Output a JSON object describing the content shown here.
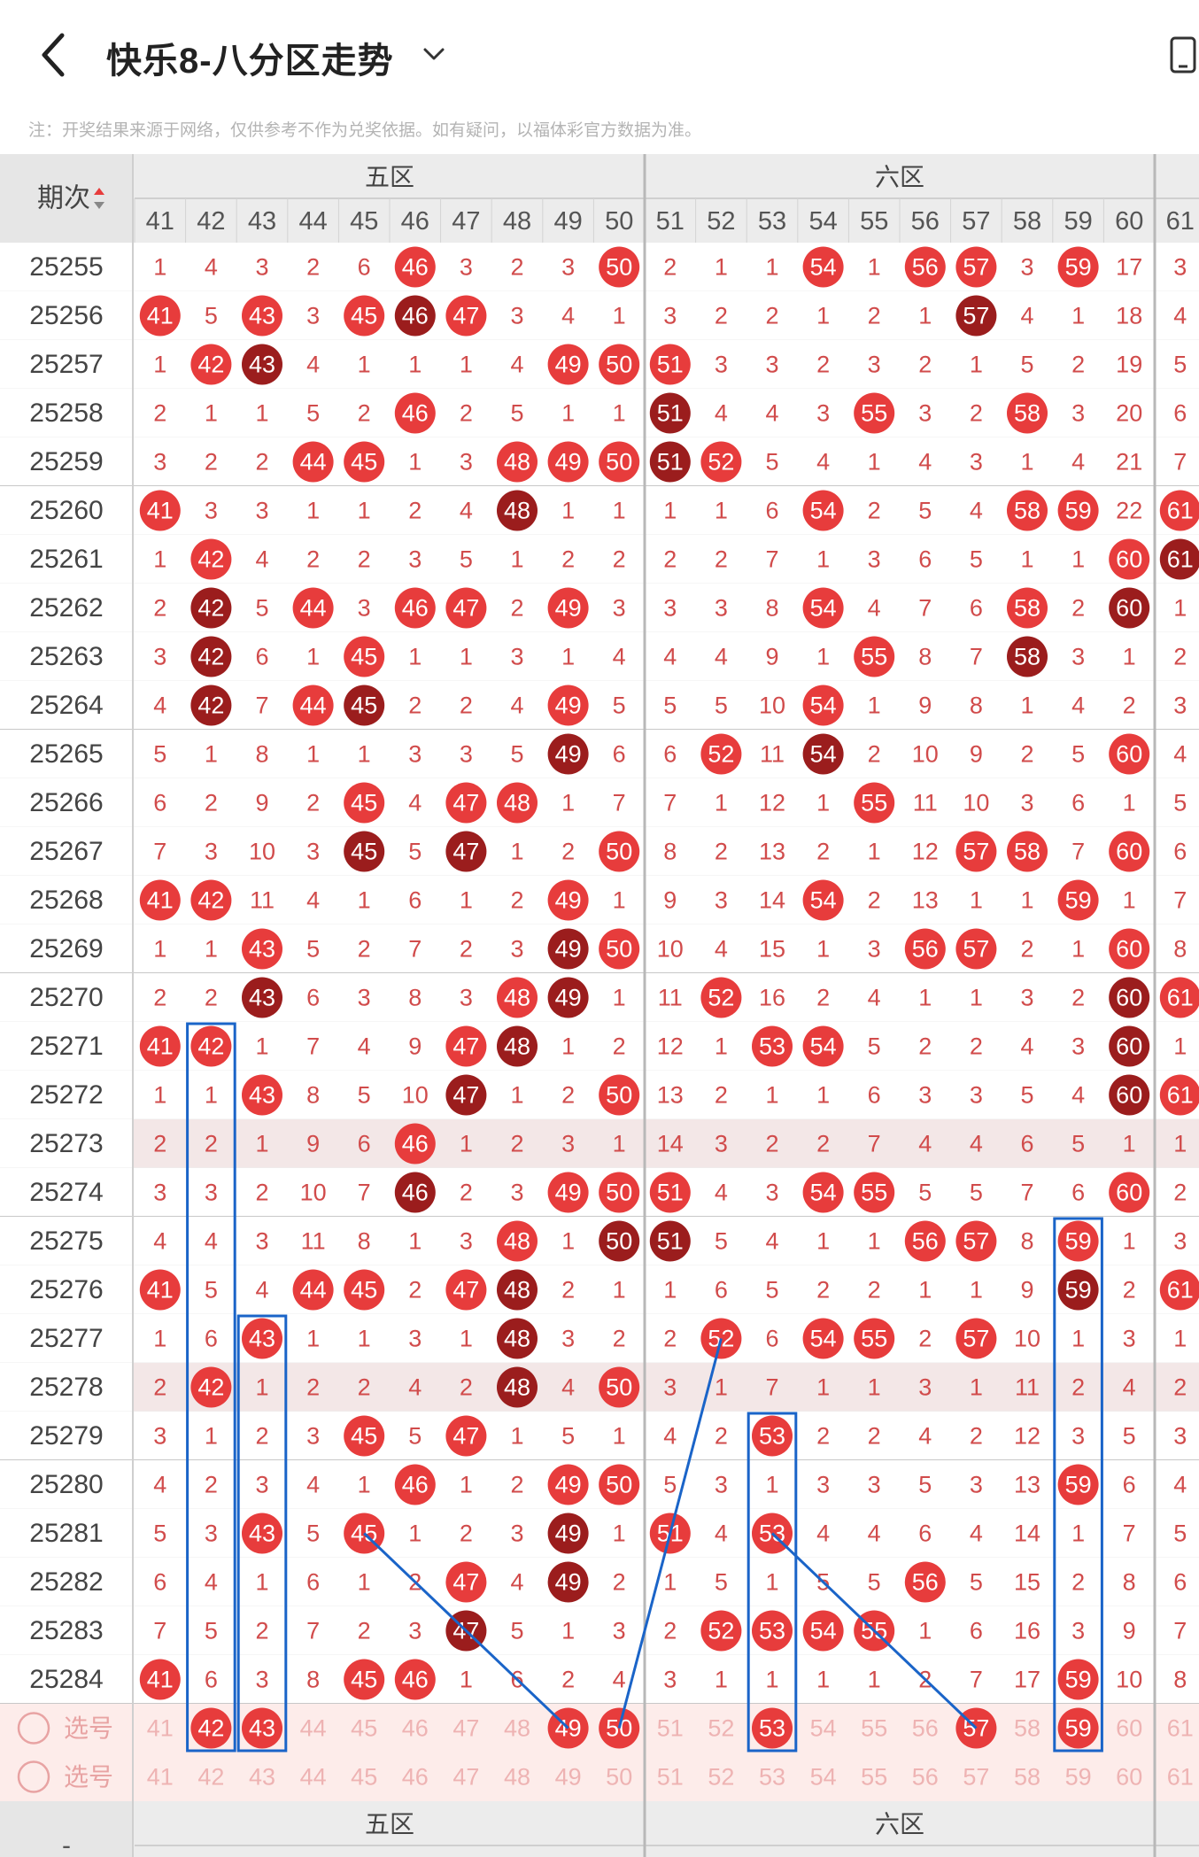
{
  "header": {
    "title": "快乐8-八分区走势",
    "notice": "注：开奖结果来源于网络，仅供参考不作为兑奖依据。如有疑问，以福体彩官方数据为准。"
  },
  "icons": {
    "back": "chevron-left-icon",
    "dropdown": "chevron-down-icon",
    "device": "phone-icon",
    "sort": "sort-icon",
    "select": "radio-circle-icon"
  },
  "colors": {
    "hit": "#e73c3c",
    "repeat": "#9b1d1d",
    "miss_text": "#d14b4b",
    "line": "#1a64c8",
    "header_bg": "#ececec",
    "select_row_bg": "#fdecea"
  },
  "table": {
    "issue_header": "期次",
    "zones": [
      "五区",
      "六区"
    ],
    "columns": [
      "41",
      "42",
      "43",
      "44",
      "45",
      "46",
      "47",
      "48",
      "49",
      "50",
      "51",
      "52",
      "53",
      "54",
      "55",
      "56",
      "57",
      "58",
      "59",
      "60",
      "61"
    ],
    "select_label": "选号",
    "select_rows": [
      {
        "label": "选号",
        "picked": [
          "42",
          "43",
          "49",
          "50",
          "53",
          "57",
          "59"
        ]
      },
      {
        "label": "选号",
        "picked": []
      }
    ],
    "footer_left": "-",
    "rows": [
      {
        "issue": "25255",
        "cells": [
          "1",
          "4",
          "3",
          "2",
          "6",
          "46",
          "3",
          "2",
          "3",
          "50",
          "2",
          "1",
          "1",
          "54",
          "1",
          "56",
          "57",
          "3",
          "59",
          "17",
          "3"
        ]
      },
      {
        "issue": "25256",
        "cells": [
          "41",
          "5",
          "43",
          "3",
          "45",
          "46",
          "47",
          "3",
          "4",
          "1",
          "3",
          "2",
          "2",
          "1",
          "2",
          "1",
          "57",
          "4",
          "1",
          "18",
          "4"
        ]
      },
      {
        "issue": "25257",
        "cells": [
          "1",
          "42",
          "43",
          "4",
          "1",
          "1",
          "1",
          "4",
          "49",
          "50",
          "51",
          "3",
          "3",
          "2",
          "3",
          "2",
          "1",
          "5",
          "2",
          "19",
          "5"
        ]
      },
      {
        "issue": "25258",
        "cells": [
          "2",
          "1",
          "1",
          "5",
          "2",
          "46",
          "2",
          "5",
          "1",
          "1",
          "51",
          "4",
          "4",
          "3",
          "55",
          "3",
          "2",
          "58",
          "3",
          "20",
          "6"
        ]
      },
      {
        "issue": "25259",
        "cells": [
          "3",
          "2",
          "2",
          "44",
          "45",
          "1",
          "3",
          "48",
          "49",
          "50",
          "51",
          "52",
          "5",
          "4",
          "1",
          "4",
          "3",
          "1",
          "4",
          "21",
          "7"
        ]
      },
      {
        "issue": "25260",
        "cells": [
          "41",
          "3",
          "3",
          "1",
          "1",
          "2",
          "4",
          "48",
          "1",
          "1",
          "1",
          "1",
          "6",
          "54",
          "2",
          "5",
          "4",
          "58",
          "59",
          "22",
          "61"
        ]
      },
      {
        "issue": "25261",
        "cells": [
          "1",
          "42",
          "4",
          "2",
          "2",
          "3",
          "5",
          "1",
          "2",
          "2",
          "2",
          "2",
          "7",
          "1",
          "3",
          "6",
          "5",
          "1",
          "1",
          "60",
          "61"
        ]
      },
      {
        "issue": "25262",
        "cells": [
          "2",
          "42",
          "5",
          "44",
          "3",
          "46",
          "47",
          "2",
          "49",
          "3",
          "3",
          "3",
          "8",
          "54",
          "4",
          "7",
          "6",
          "58",
          "2",
          "60",
          "1"
        ]
      },
      {
        "issue": "25263",
        "cells": [
          "3",
          "42",
          "6",
          "1",
          "45",
          "1",
          "1",
          "3",
          "1",
          "4",
          "4",
          "4",
          "9",
          "1",
          "55",
          "8",
          "7",
          "58",
          "3",
          "1",
          "2"
        ]
      },
      {
        "issue": "25264",
        "cells": [
          "4",
          "42",
          "7",
          "44",
          "45",
          "2",
          "2",
          "4",
          "49",
          "5",
          "5",
          "5",
          "10",
          "54",
          "1",
          "9",
          "8",
          "1",
          "4",
          "2",
          "3"
        ]
      },
      {
        "issue": "25265",
        "cells": [
          "5",
          "1",
          "8",
          "1",
          "1",
          "3",
          "3",
          "5",
          "49",
          "6",
          "6",
          "52",
          "11",
          "54",
          "2",
          "10",
          "9",
          "2",
          "5",
          "60",
          "4"
        ]
      },
      {
        "issue": "25266",
        "cells": [
          "6",
          "2",
          "9",
          "2",
          "45",
          "4",
          "47",
          "48",
          "1",
          "7",
          "7",
          "1",
          "12",
          "1",
          "55",
          "11",
          "10",
          "3",
          "6",
          "1",
          "5"
        ]
      },
      {
        "issue": "25267",
        "cells": [
          "7",
          "3",
          "10",
          "3",
          "45",
          "5",
          "47",
          "1",
          "2",
          "50",
          "8",
          "2",
          "13",
          "2",
          "1",
          "12",
          "57",
          "58",
          "7",
          "60",
          "6"
        ]
      },
      {
        "issue": "25268",
        "cells": [
          "41",
          "42",
          "11",
          "4",
          "1",
          "6",
          "1",
          "2",
          "49",
          "1",
          "9",
          "3",
          "14",
          "54",
          "2",
          "13",
          "1",
          "1",
          "59",
          "1",
          "7"
        ]
      },
      {
        "issue": "25269",
        "cells": [
          "1",
          "1",
          "43",
          "5",
          "2",
          "7",
          "2",
          "3",
          "49",
          "50",
          "10",
          "4",
          "15",
          "1",
          "3",
          "56",
          "57",
          "2",
          "1",
          "60",
          "8"
        ]
      },
      {
        "issue": "25270",
        "cells": [
          "2",
          "2",
          "43",
          "6",
          "3",
          "8",
          "3",
          "48",
          "49",
          "1",
          "11",
          "52",
          "16",
          "2",
          "4",
          "1",
          "1",
          "3",
          "2",
          "60",
          "61"
        ]
      },
      {
        "issue": "25271",
        "cells": [
          "41",
          "42",
          "1",
          "7",
          "4",
          "9",
          "47",
          "48",
          "1",
          "2",
          "12",
          "1",
          "53",
          "54",
          "5",
          "2",
          "2",
          "4",
          "3",
          "60",
          "1"
        ]
      },
      {
        "issue": "25272",
        "cells": [
          "1",
          "1",
          "43",
          "8",
          "5",
          "10",
          "47",
          "1",
          "2",
          "50",
          "13",
          "2",
          "1",
          "1",
          "6",
          "3",
          "3",
          "5",
          "4",
          "60",
          "61"
        ]
      },
      {
        "issue": "25273",
        "cells": [
          "2",
          "2",
          "1",
          "9",
          "6",
          "46",
          "1",
          "2",
          "3",
          "1",
          "14",
          "3",
          "2",
          "2",
          "7",
          "4",
          "4",
          "6",
          "5",
          "1",
          "1"
        ]
      },
      {
        "issue": "25274",
        "cells": [
          "3",
          "3",
          "2",
          "10",
          "7",
          "46",
          "2",
          "3",
          "49",
          "50",
          "51",
          "4",
          "3",
          "54",
          "55",
          "5",
          "5",
          "7",
          "6",
          "60",
          "2"
        ]
      },
      {
        "issue": "25275",
        "cells": [
          "4",
          "4",
          "3",
          "11",
          "8",
          "1",
          "3",
          "48",
          "1",
          "50",
          "51",
          "5",
          "4",
          "1",
          "1",
          "56",
          "57",
          "8",
          "59",
          "1",
          "3"
        ]
      },
      {
        "issue": "25276",
        "cells": [
          "41",
          "5",
          "4",
          "44",
          "45",
          "2",
          "47",
          "48",
          "2",
          "1",
          "1",
          "6",
          "5",
          "2",
          "2",
          "1",
          "1",
          "9",
          "59",
          "2",
          "61"
        ]
      },
      {
        "issue": "25277",
        "cells": [
          "1",
          "6",
          "43",
          "1",
          "1",
          "3",
          "1",
          "48",
          "3",
          "2",
          "2",
          "52",
          "6",
          "54",
          "55",
          "2",
          "57",
          "10",
          "1",
          "3",
          "1"
        ]
      },
      {
        "issue": "25278",
        "cells": [
          "2",
          "42",
          "1",
          "2",
          "2",
          "4",
          "2",
          "48",
          "4",
          "50",
          "3",
          "1",
          "7",
          "1",
          "1",
          "3",
          "1",
          "11",
          "2",
          "4",
          "2"
        ]
      },
      {
        "issue": "25279",
        "cells": [
          "3",
          "1",
          "2",
          "3",
          "45",
          "5",
          "47",
          "1",
          "5",
          "1",
          "4",
          "2",
          "53",
          "2",
          "2",
          "4",
          "2",
          "12",
          "3",
          "5",
          "3"
        ]
      },
      {
        "issue": "25280",
        "cells": [
          "4",
          "2",
          "3",
          "4",
          "1",
          "46",
          "1",
          "2",
          "49",
          "50",
          "5",
          "3",
          "1",
          "3",
          "3",
          "5",
          "3",
          "13",
          "59",
          "6",
          "4"
        ]
      },
      {
        "issue": "25281",
        "cells": [
          "5",
          "3",
          "43",
          "5",
          "45",
          "1",
          "2",
          "3",
          "49",
          "1",
          "51",
          "4",
          "53",
          "4",
          "4",
          "6",
          "4",
          "14",
          "1",
          "7",
          "5"
        ]
      },
      {
        "issue": "25282",
        "cells": [
          "6",
          "4",
          "1",
          "6",
          "1",
          "2",
          "47",
          "4",
          "49",
          "2",
          "1",
          "5",
          "1",
          "5",
          "5",
          "56",
          "5",
          "15",
          "2",
          "8",
          "6"
        ]
      },
      {
        "issue": "25283",
        "cells": [
          "7",
          "5",
          "2",
          "7",
          "2",
          "3",
          "47",
          "5",
          "1",
          "3",
          "2",
          "52",
          "53",
          "54",
          "55",
          "1",
          "6",
          "16",
          "3",
          "9",
          "7"
        ]
      },
      {
        "issue": "25284",
        "cells": [
          "41",
          "6",
          "3",
          "8",
          "45",
          "46",
          "1",
          "6",
          "2",
          "4",
          "3",
          "1",
          "1",
          "1",
          "1",
          "2",
          "7",
          "17",
          "59",
          "10",
          "8"
        ]
      }
    ]
  }
}
